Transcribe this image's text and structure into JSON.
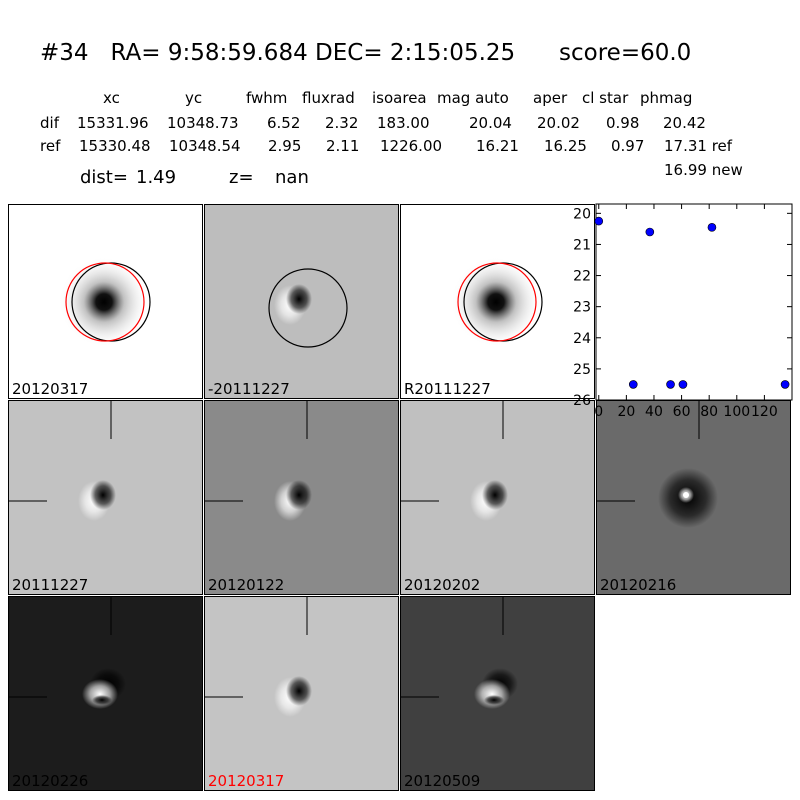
{
  "header": {
    "title": "#34   RA= 9:58:59.684 DEC= 2:15:05.25      score=60.0",
    "columns": [
      "xc",
      "yc",
      "fwhm",
      "fluxrad",
      "isoarea",
      "mag auto",
      "aper",
      "cl star",
      "phmag"
    ],
    "rows": [
      {
        "label": "dif",
        "values": [
          "15331.96",
          "10348.73",
          "6.52",
          "2.32",
          "183.00",
          "20.04",
          "20.02",
          "0.98",
          "20.42"
        ]
      },
      {
        "label": "ref",
        "values": [
          "15330.48",
          "10348.54",
          "2.95",
          "2.11",
          "1226.00",
          "16.21",
          "16.25",
          "0.97",
          "17.31 ref"
        ]
      }
    ],
    "extra": "16.99 new",
    "dist_label": "dist=",
    "dist_value": "1.49",
    "z_label": "z=",
    "z_value": "nan"
  },
  "panels": [
    {
      "label": "20120317",
      "bg": "#ffffff",
      "type": "blob",
      "circles": true
    },
    {
      "label": "-20111227",
      "bg": "#bdbdbd",
      "type": "dipole",
      "circles": "black"
    },
    {
      "label": "R20111227",
      "bg": "#ffffff",
      "type": "blob",
      "circles": true
    },
    {
      "label": "20111227",
      "bg": "#c2c2c2",
      "type": "dipole"
    },
    {
      "label": "20120122",
      "bg": "#8a8a8a",
      "type": "dipole"
    },
    {
      "label": "20120202",
      "bg": "#c0c0c0",
      "type": "dipole"
    },
    {
      "label": "20120216",
      "bg": "#6a6a6a",
      "type": "ring"
    },
    {
      "label": "20120226",
      "bg": "#1c1c1c",
      "type": "dipole-bright"
    },
    {
      "label": "20120317",
      "bg": "#c4c4c4",
      "type": "dipole",
      "red_label": true
    },
    {
      "label": "20120509",
      "bg": "#404040",
      "type": "dipole-bright"
    }
  ],
  "chart_data": {
    "type": "scatter",
    "x": [
      0,
      25,
      37,
      52,
      61,
      82,
      135
    ],
    "y": [
      20.25,
      25.5,
      20.6,
      25.5,
      25.5,
      20.45,
      25.5
    ],
    "xlim": [
      -2,
      140
    ],
    "ylim": [
      26,
      19.7
    ],
    "xticks": [
      "0",
      "20",
      "40",
      "60",
      "80",
      "100",
      "120"
    ],
    "yticks": [
      "20",
      "21",
      "22",
      "23",
      "24",
      "25",
      "26"
    ],
    "marker_color": "#0000ff"
  }
}
